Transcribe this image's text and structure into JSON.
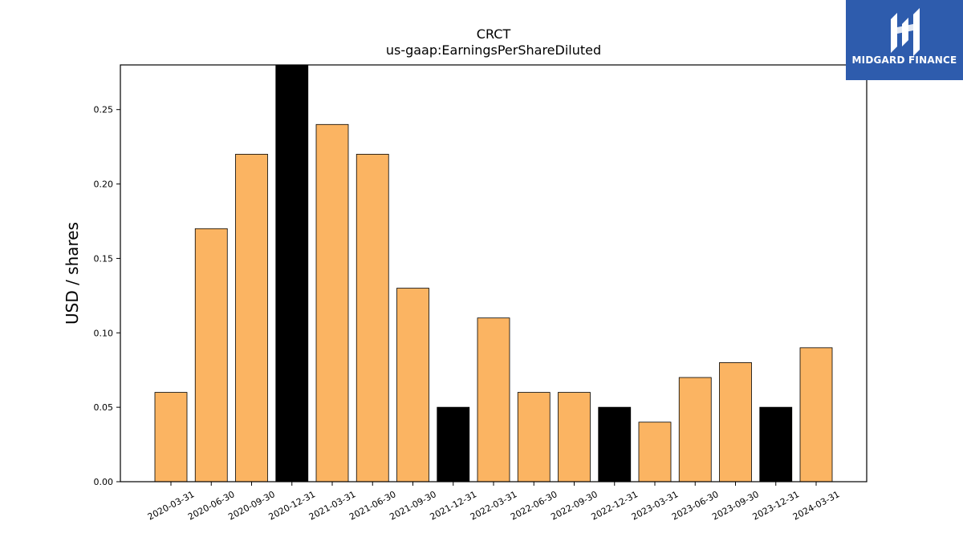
{
  "chart_data": {
    "type": "bar",
    "title": "CRCT",
    "subtitle": "us-gaap:EarningsPerShareDiluted",
    "xlabel": "",
    "ylabel": "USD / shares",
    "categories": [
      "2020-03-31",
      "2020-06-30",
      "2020-09-30",
      "2020-12-31",
      "2021-03-31",
      "2021-06-30",
      "2021-09-30",
      "2021-12-31",
      "2022-03-31",
      "2022-06-30",
      "2022-09-30",
      "2022-12-31",
      "2023-03-31",
      "2023-06-30",
      "2023-09-30",
      "2023-12-31",
      "2024-03-31"
    ],
    "values": [
      0.06,
      0.17,
      0.22,
      0.28,
      0.24,
      0.22,
      0.13,
      0.05,
      0.11,
      0.06,
      0.06,
      0.05,
      0.04,
      0.07,
      0.08,
      0.05,
      0.09
    ],
    "bar_colors": [
      "#fbb462",
      "#fbb462",
      "#fbb462",
      "#000000",
      "#fbb462",
      "#fbb462",
      "#fbb462",
      "#000000",
      "#fbb462",
      "#fbb462",
      "#fbb462",
      "#000000",
      "#fbb462",
      "#fbb462",
      "#fbb462",
      "#000000",
      "#fbb462"
    ],
    "ylim": [
      0,
      0.28
    ],
    "yticks": [
      0.0,
      0.05,
      0.1,
      0.15,
      0.2,
      0.25
    ],
    "ytick_labels": [
      "0.00",
      "0.05",
      "0.10",
      "0.15",
      "0.20",
      "0.25"
    ],
    "grid": false,
    "legend": "none"
  },
  "logo": {
    "text": "MIDGARD FINANCE",
    "background": "#2e5cad",
    "icon": "midgard-logo-icon"
  }
}
